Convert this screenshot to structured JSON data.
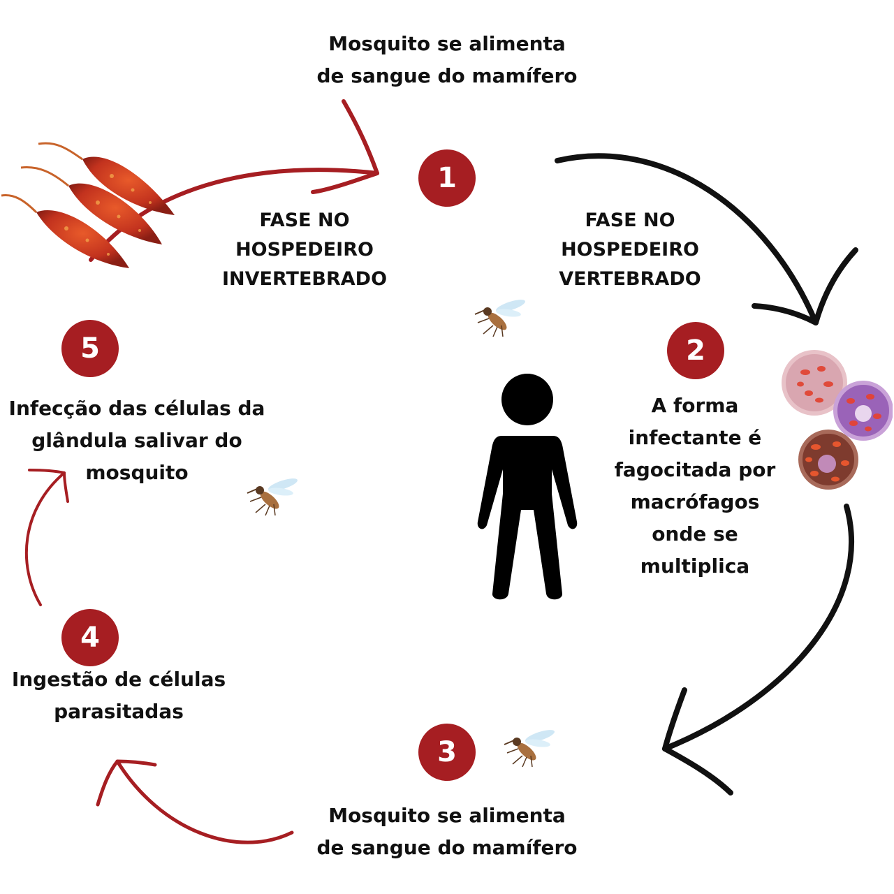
{
  "colors": {
    "accent": "#A61E22",
    "arrow_dark": "#111111",
    "arrow_red": "#A61E22",
    "text": "#111111"
  },
  "steps": [
    {
      "number": "1",
      "text": "Mosquito se alimenta\nde sangue do mamífero"
    },
    {
      "number": "2",
      "text": "A forma\ninfectante é\nfagocitada por\nmacrófagos\nonde se\nmultiplica"
    },
    {
      "number": "3",
      "text": "Mosquito se alimenta\nde sangue do mamífero"
    },
    {
      "number": "4",
      "text": "Ingestão de células\nparasitadas"
    },
    {
      "number": "5",
      "text": "Infecção das células da\nglândula salivar do\nmosquito"
    }
  ],
  "phases": {
    "invertebrate": "FASE NO\nHOSPEDEIRO\nINVERTEBRADO",
    "vertebrate": "FASE NO\nHOSPEDEIRO\nVERTEBRADO"
  },
  "icons": [
    "parasite-illustration",
    "macrophage-cells-illustration",
    "human-silhouette-icon",
    "mosquito-icon"
  ]
}
